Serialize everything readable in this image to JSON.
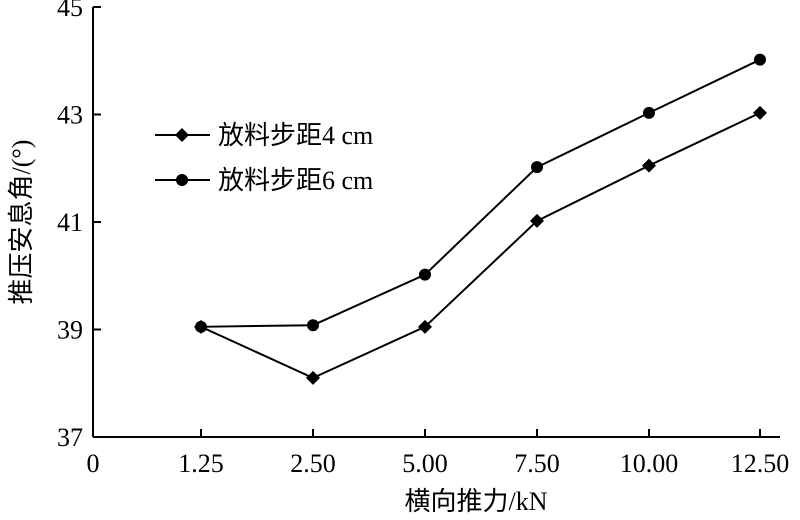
{
  "chart_data": {
    "type": "line",
    "xlabel": "横向推力/kN",
    "ylabel": "推压安息角/(°)",
    "categories": [
      "1.25",
      "2.50",
      "5.00",
      "7.50",
      "10.00",
      "12.50"
    ],
    "x_axis_origin_label": "0",
    "ylim": [
      37,
      45
    ],
    "yticks": [
      "37",
      "39",
      "41",
      "43",
      "45"
    ],
    "series": [
      {
        "name": "放料步距4 cm",
        "marker": "diamond",
        "values": [
          39.05,
          38.1,
          39.05,
          41.02,
          42.05,
          43.03
        ]
      },
      {
        "name": "放料步距6 cm",
        "marker": "circle",
        "values": [
          39.05,
          39.08,
          40.02,
          42.02,
          43.03,
          44.02
        ]
      }
    ],
    "legend_position": "upper-left",
    "grid": false
  }
}
